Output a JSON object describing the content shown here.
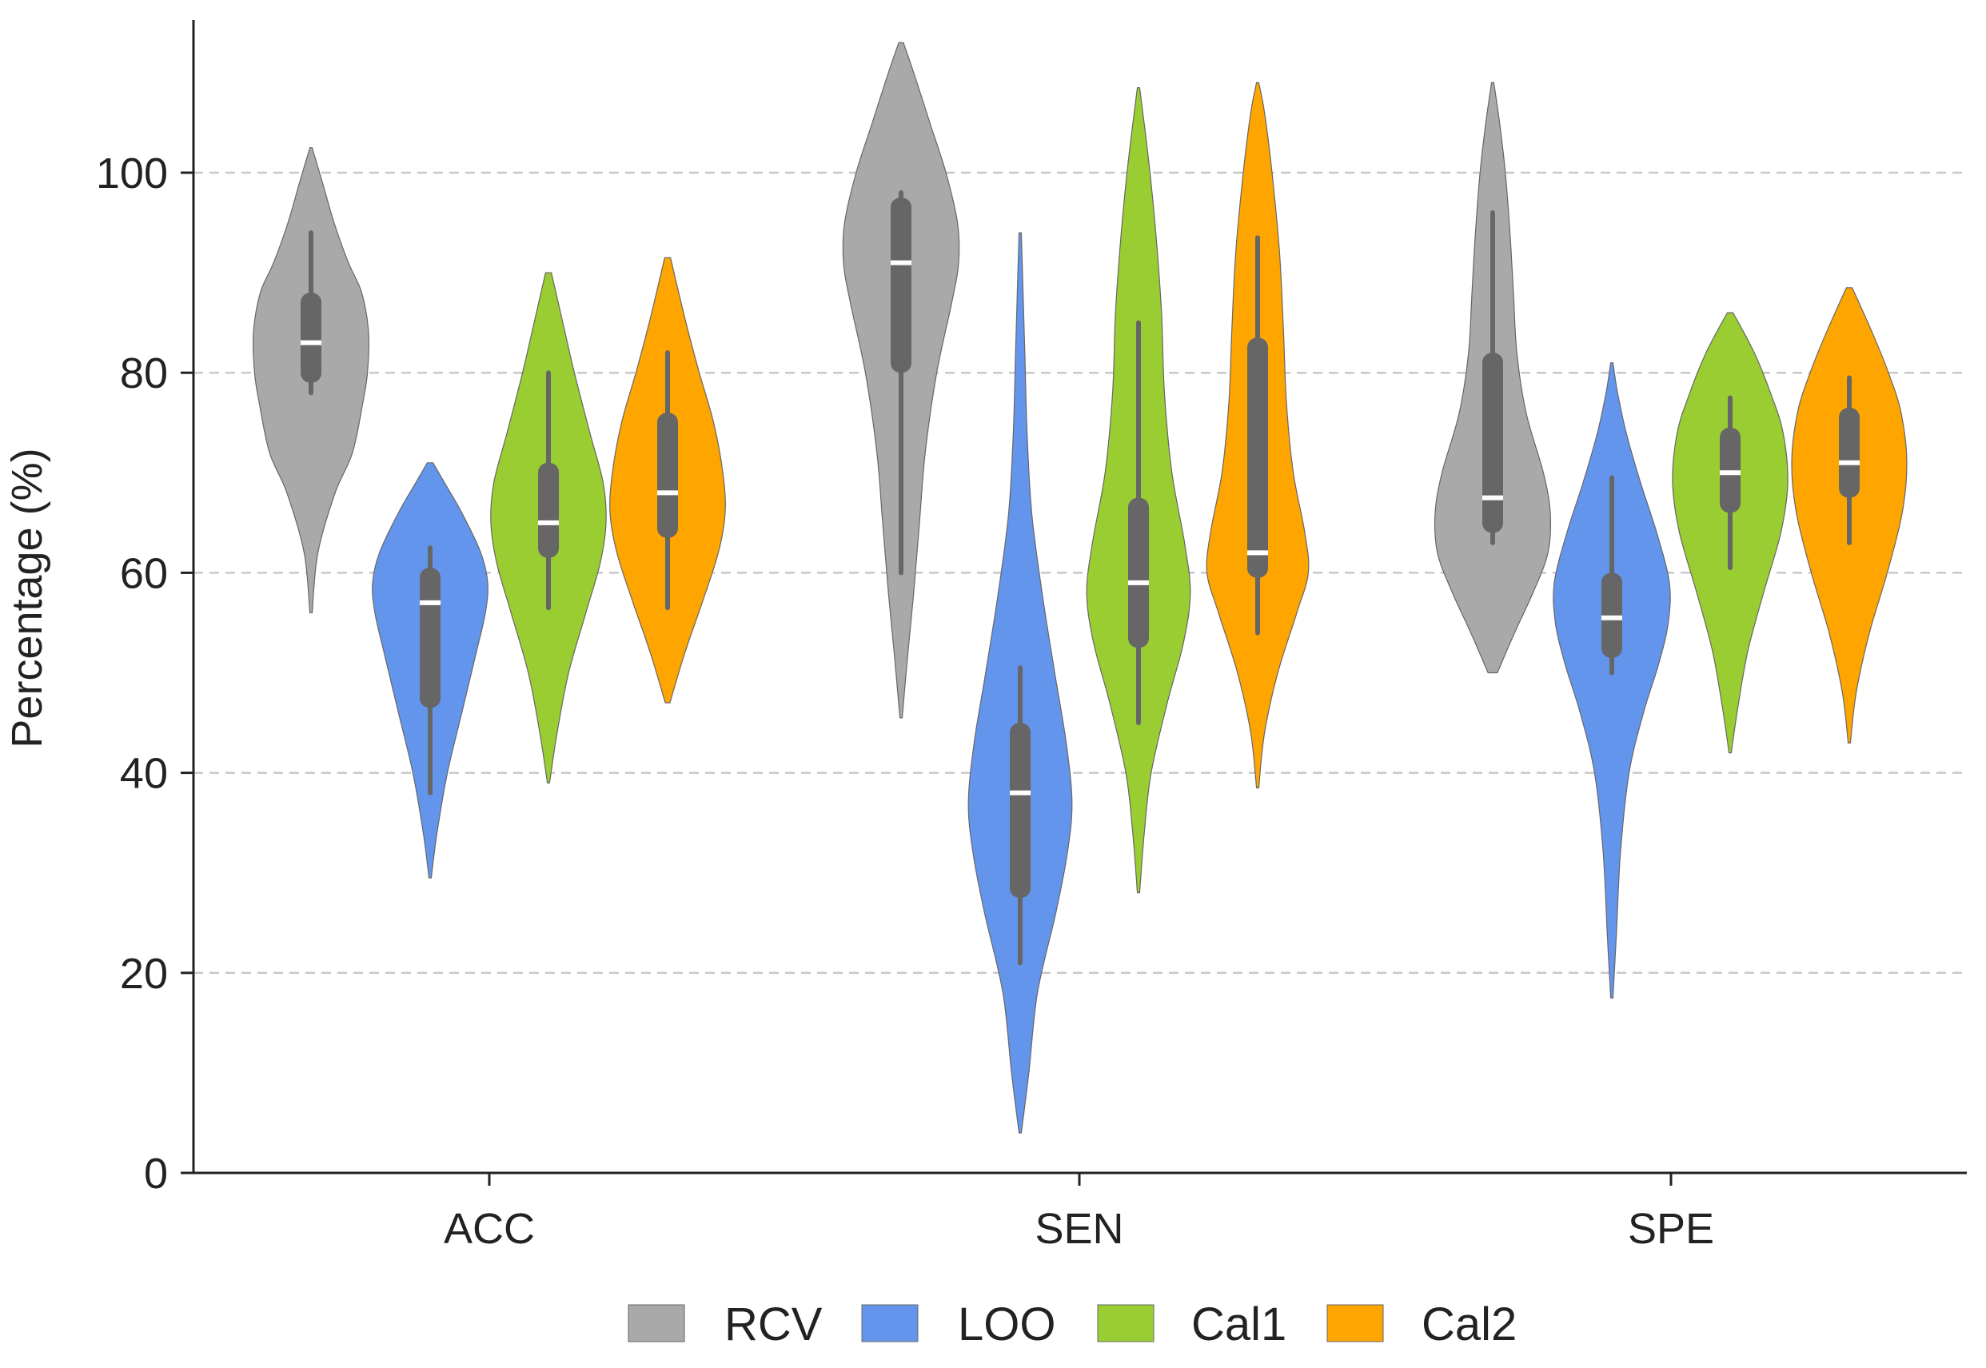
{
  "chart_data": {
    "type": "violin",
    "title": "",
    "xlabel": "",
    "ylabel": "Percentage (%)",
    "ylim": [
      0,
      115
    ],
    "yticks": [
      0,
      20,
      40,
      60,
      80,
      100
    ],
    "grid": "horizontal dashed",
    "legend_position": "bottom",
    "categories": [
      "ACC",
      "SEN",
      "SPE"
    ],
    "series": [
      {
        "name": "RCV",
        "color": "#a9a9a9",
        "values": [
          {
            "category": "ACC",
            "min": 78,
            "q1": 79,
            "median": 83,
            "q3": 88,
            "max": 94,
            "violin_min": 56,
            "violin_max": 102.5,
            "widths": [
              [
                56,
                0.02
              ],
              [
                62,
                0.12
              ],
              [
                68,
                0.42
              ],
              [
                72,
                0.72
              ],
              [
                77,
                0.9
              ],
              [
                80,
                0.98
              ],
              [
                84,
                1.0
              ],
              [
                88,
                0.88
              ],
              [
                91,
                0.65
              ],
              [
                95,
                0.4
              ],
              [
                99,
                0.2
              ],
              [
                102.5,
                0.02
              ]
            ]
          },
          {
            "category": "SEN",
            "min": 60,
            "q1": 80,
            "median": 91,
            "q3": 97.5,
            "max": 98,
            "violin_min": 45.5,
            "violin_max": 113,
            "widths": [
              [
                45.5,
                0.02
              ],
              [
                52,
                0.12
              ],
              [
                58,
                0.22
              ],
              [
                65,
                0.32
              ],
              [
                72,
                0.42
              ],
              [
                80,
                0.62
              ],
              [
                87,
                0.88
              ],
              [
                91,
                1.0
              ],
              [
                95,
                0.98
              ],
              [
                100,
                0.78
              ],
              [
                105,
                0.5
              ],
              [
                110,
                0.22
              ],
              [
                113,
                0.04
              ]
            ]
          },
          {
            "category": "SPE",
            "min": 63,
            "q1": 64,
            "median": 67.5,
            "q3": 82,
            "max": 96,
            "violin_min": 50,
            "violin_max": 109,
            "widths": [
              [
                50,
                0.08
              ],
              [
                54,
                0.38
              ],
              [
                58,
                0.7
              ],
              [
                62,
                0.96
              ],
              [
                66,
                1.0
              ],
              [
                70,
                0.88
              ],
              [
                76,
                0.58
              ],
              [
                82,
                0.42
              ],
              [
                88,
                0.36
              ],
              [
                94,
                0.3
              ],
              [
                100,
                0.22
              ],
              [
                105,
                0.12
              ],
              [
                109,
                0.02
              ]
            ]
          }
        ]
      },
      {
        "name": "LOO",
        "color": "#6495ed",
        "values": [
          {
            "category": "ACC",
            "min": 38,
            "q1": 46.5,
            "median": 57,
            "q3": 60.5,
            "max": 62.5,
            "violin_min": 29.5,
            "violin_max": 71,
            "widths": [
              [
                29.5,
                0.02
              ],
              [
                34,
                0.12
              ],
              [
                40,
                0.3
              ],
              [
                46,
                0.55
              ],
              [
                52,
                0.8
              ],
              [
                56,
                0.96
              ],
              [
                59,
                1.0
              ],
              [
                62,
                0.88
              ],
              [
                66,
                0.55
              ],
              [
                69,
                0.25
              ],
              [
                71,
                0.05
              ]
            ]
          },
          {
            "category": "SEN",
            "min": 21,
            "q1": 27.5,
            "median": 38,
            "q3": 45,
            "max": 50.5,
            "violin_min": 4,
            "violin_max": 94,
            "widths": [
              [
                4,
                0.02
              ],
              [
                10,
                0.15
              ],
              [
                18,
                0.3
              ],
              [
                26,
                0.62
              ],
              [
                32,
                0.82
              ],
              [
                37,
                0.9
              ],
              [
                43,
                0.8
              ],
              [
                50,
                0.6
              ],
              [
                58,
                0.38
              ],
              [
                66,
                0.2
              ],
              [
                74,
                0.12
              ],
              [
                82,
                0.08
              ],
              [
                90,
                0.04
              ],
              [
                94,
                0.02
              ]
            ]
          },
          {
            "category": "SPE",
            "min": 50,
            "q1": 51.5,
            "median": 55.5,
            "q3": 60,
            "max": 69.5,
            "violin_min": 17.5,
            "violin_max": 81,
            "widths": [
              [
                17.5,
                0.02
              ],
              [
                24,
                0.08
              ],
              [
                32,
                0.15
              ],
              [
                40,
                0.3
              ],
              [
                46,
                0.55
              ],
              [
                51,
                0.82
              ],
              [
                55,
                0.98
              ],
              [
                59,
                1.0
              ],
              [
                64,
                0.78
              ],
              [
                69,
                0.5
              ],
              [
                74,
                0.25
              ],
              [
                78,
                0.1
              ],
              [
                81,
                0.02
              ]
            ]
          }
        ]
      },
      {
        "name": "Cal1",
        "color": "#9acd32",
        "values": [
          {
            "category": "ACC",
            "min": 56.5,
            "q1": 61.5,
            "median": 65,
            "q3": 71,
            "max": 80,
            "violin_min": 39,
            "violin_max": 90,
            "widths": [
              [
                39,
                0.02
              ],
              [
                44,
                0.15
              ],
              [
                50,
                0.35
              ],
              [
                56,
                0.65
              ],
              [
                61,
                0.9
              ],
              [
                65,
                1.0
              ],
              [
                69,
                0.95
              ],
              [
                74,
                0.72
              ],
              [
                80,
                0.45
              ],
              [
                85,
                0.25
              ],
              [
                90,
                0.05
              ]
            ]
          },
          {
            "category": "SEN",
            "min": 45,
            "q1": 52.5,
            "median": 59,
            "q3": 67.5,
            "max": 85,
            "violin_min": 28,
            "violin_max": 108.5,
            "widths": [
              [
                28,
                0.02
              ],
              [
                34,
                0.1
              ],
              [
                40,
                0.22
              ],
              [
                47,
                0.5
              ],
              [
                53,
                0.78
              ],
              [
                58,
                0.9
              ],
              [
                63,
                0.8
              ],
              [
                70,
                0.58
              ],
              [
                78,
                0.45
              ],
              [
                86,
                0.4
              ],
              [
                94,
                0.3
              ],
              [
                101,
                0.18
              ],
              [
                108.5,
                0.02
              ]
            ]
          },
          {
            "category": "SPE",
            "min": 60.5,
            "q1": 66,
            "median": 70,
            "q3": 74.5,
            "max": 77.5,
            "violin_min": 42,
            "violin_max": 86,
            "widths": [
              [
                42,
                0.02
              ],
              [
                46,
                0.12
              ],
              [
                52,
                0.3
              ],
              [
                58,
                0.58
              ],
              [
                64,
                0.88
              ],
              [
                69,
                1.0
              ],
              [
                74,
                0.92
              ],
              [
                78,
                0.7
              ],
              [
                82,
                0.42
              ],
              [
                86,
                0.05
              ]
            ]
          }
        ]
      },
      {
        "name": "Cal2",
        "color": "#ffa500",
        "values": [
          {
            "category": "ACC",
            "min": 56.5,
            "q1": 63.5,
            "median": 68,
            "q3": 76,
            "max": 82,
            "violin_min": 47,
            "violin_max": 91.5,
            "widths": [
              [
                47,
                0.04
              ],
              [
                52,
                0.3
              ],
              [
                57,
                0.6
              ],
              [
                62,
                0.88
              ],
              [
                66,
                1.0
              ],
              [
                70,
                0.96
              ],
              [
                75,
                0.8
              ],
              [
                80,
                0.55
              ],
              [
                85,
                0.32
              ],
              [
                91.5,
                0.05
              ]
            ]
          },
          {
            "category": "SEN",
            "min": 54,
            "q1": 59.5,
            "median": 62,
            "q3": 83.5,
            "max": 93.5,
            "violin_min": 38.5,
            "violin_max": 109,
            "widths": [
              [
                38.5,
                0.02
              ],
              [
                44,
                0.12
              ],
              [
                50,
                0.35
              ],
              [
                56,
                0.68
              ],
              [
                60,
                0.88
              ],
              [
                64,
                0.82
              ],
              [
                70,
                0.62
              ],
              [
                77,
                0.5
              ],
              [
                84,
                0.45
              ],
              [
                92,
                0.38
              ],
              [
                100,
                0.25
              ],
              [
                106,
                0.12
              ],
              [
                109,
                0.02
              ]
            ]
          },
          {
            "category": "SPE",
            "min": 63,
            "q1": 67.5,
            "median": 71,
            "q3": 76.5,
            "max": 79.5,
            "violin_min": 43,
            "violin_max": 88.5,
            "widths": [
              [
                43,
                0.02
              ],
              [
                48,
                0.12
              ],
              [
                54,
                0.35
              ],
              [
                60,
                0.66
              ],
              [
                66,
                0.92
              ],
              [
                71,
                1.0
              ],
              [
                76,
                0.9
              ],
              [
                80,
                0.68
              ],
              [
                84,
                0.4
              ],
              [
                88.5,
                0.05
              ]
            ]
          }
        ]
      }
    ]
  }
}
